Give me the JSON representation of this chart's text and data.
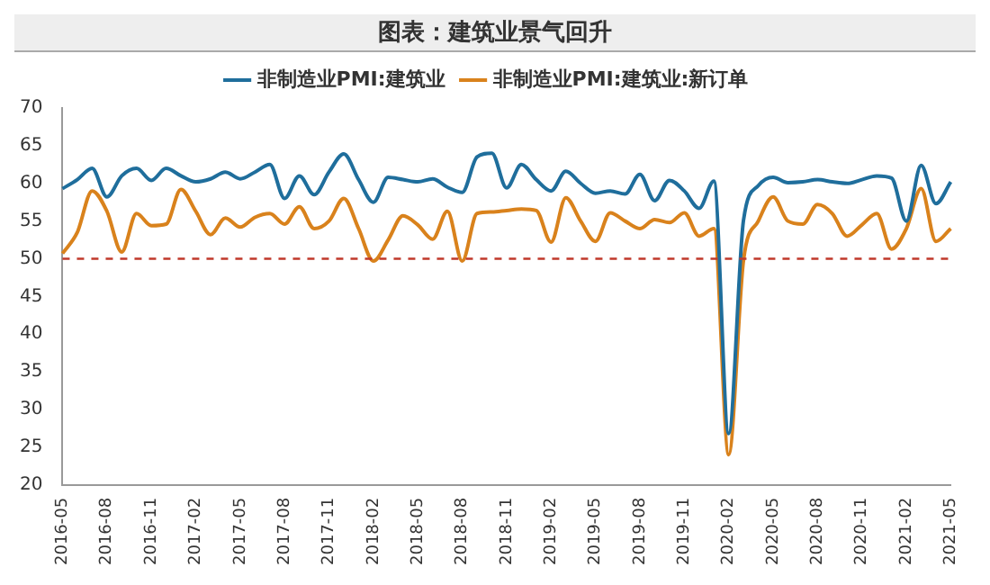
{
  "chart_data": {
    "type": "line",
    "title": "图表：建筑业景气回升",
    "categories": [
      "2016-05",
      null,
      null,
      "2016-08",
      null,
      null,
      "2016-11",
      null,
      null,
      "2017-02",
      null,
      null,
      "2017-05",
      null,
      null,
      "2017-08",
      null,
      null,
      "2017-11",
      null,
      null,
      "2018-02",
      null,
      null,
      "2018-05",
      null,
      null,
      "2018-08",
      null,
      null,
      "2018-11",
      null,
      null,
      "2019-02",
      null,
      null,
      "2019-05",
      null,
      null,
      "2019-08",
      null,
      null,
      "2019-11",
      null,
      null,
      "2020-02",
      null,
      null,
      "2020-05",
      null,
      null,
      "2020-08",
      null,
      null,
      "2020-11",
      null,
      null,
      "2021-02",
      null,
      null,
      "2021-05"
    ],
    "series": [
      {
        "name": "非制造业PMI:建筑业",
        "color": "#1f6e9c",
        "values": [
          59.3,
          60.5,
          62.0,
          58.2,
          61.0,
          62.0,
          60.4,
          62.0,
          61.0,
          60.2,
          60.6,
          61.5,
          60.6,
          61.5,
          62.5,
          58.0,
          61.0,
          58.5,
          61.5,
          63.9,
          60.5,
          57.5,
          60.8,
          60.5,
          60.2,
          60.6,
          59.5,
          58.8,
          63.5,
          64.0,
          59.4,
          62.5,
          60.5,
          59.0,
          61.6,
          60.0,
          58.7,
          59.0,
          58.6,
          61.2,
          57.7,
          60.4,
          59.0,
          56.7,
          60.3,
          26.8,
          55.1,
          59.7,
          60.8,
          60.1,
          60.2,
          60.5,
          60.2,
          60.0,
          60.5,
          61.0,
          60.7,
          55.0,
          62.4,
          57.3,
          60.2
        ]
      },
      {
        "name": "非制造业PMI:建筑业:新订单",
        "color": "#d9821c",
        "values": [
          50.7,
          53.5,
          59.0,
          56.3,
          50.9,
          56.0,
          54.4,
          54.6,
          59.2,
          56.3,
          53.2,
          55.4,
          54.2,
          55.5,
          56.0,
          54.6,
          56.9,
          54.0,
          55.0,
          58.0,
          54.0,
          49.7,
          52.5,
          55.7,
          54.5,
          52.6,
          56.3,
          49.7,
          56.0,
          56.2,
          56.4,
          56.6,
          56.4,
          52.2,
          58.1,
          55.0,
          52.3,
          56.1,
          55.0,
          54.0,
          55.2,
          54.8,
          56.1,
          53.0,
          54.0,
          24.0,
          49.8,
          55.0,
          58.2,
          55.0,
          54.6,
          57.2,
          56.0,
          53.0,
          54.5,
          56.0,
          51.3,
          54.0,
          59.3,
          52.3,
          54.0
        ]
      }
    ],
    "ylim": [
      20,
      70
    ],
    "yticks": [
      20,
      25,
      30,
      35,
      40,
      45,
      50,
      55,
      60,
      65,
      70
    ],
    "ref_lines": [
      {
        "axis": "y",
        "value": 50,
        "color": "#c0392b",
        "line_style": "dashed"
      }
    ],
    "legend": "top",
    "marker": "none"
  }
}
